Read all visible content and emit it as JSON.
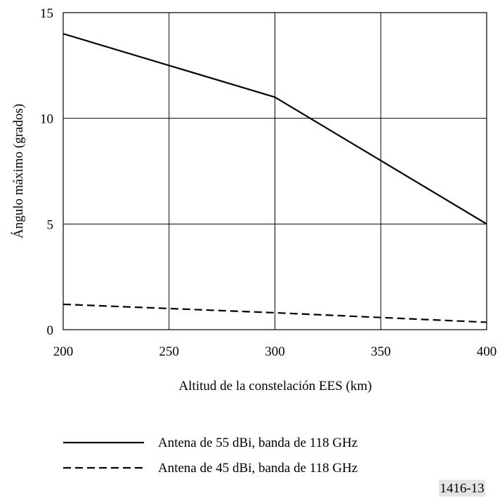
{
  "chart_data": {
    "type": "line",
    "title": "",
    "xlabel": "Altitud de la constelación EES (km)",
    "ylabel": "Ángulo máximo (grados)",
    "xlim": [
      200,
      400
    ],
    "ylim": [
      0,
      15
    ],
    "x_ticks": [
      200,
      250,
      300,
      350,
      400
    ],
    "y_ticks": [
      0,
      5,
      10,
      15
    ],
    "grid": true,
    "legend_position": "bottom",
    "series": [
      {
        "name": "Antena de 55 dBi, banda de 118 GHz",
        "style": "solid",
        "x": [
          200,
          300,
          400
        ],
        "y": [
          14,
          11,
          5
        ]
      },
      {
        "name": "Antena de 45 dBi, banda de 118 GHz",
        "style": "dashed",
        "x": [
          200,
          300,
          400
        ],
        "y": [
          1.2,
          0.8,
          0.35
        ]
      }
    ]
  },
  "figure_id": "1416-13"
}
